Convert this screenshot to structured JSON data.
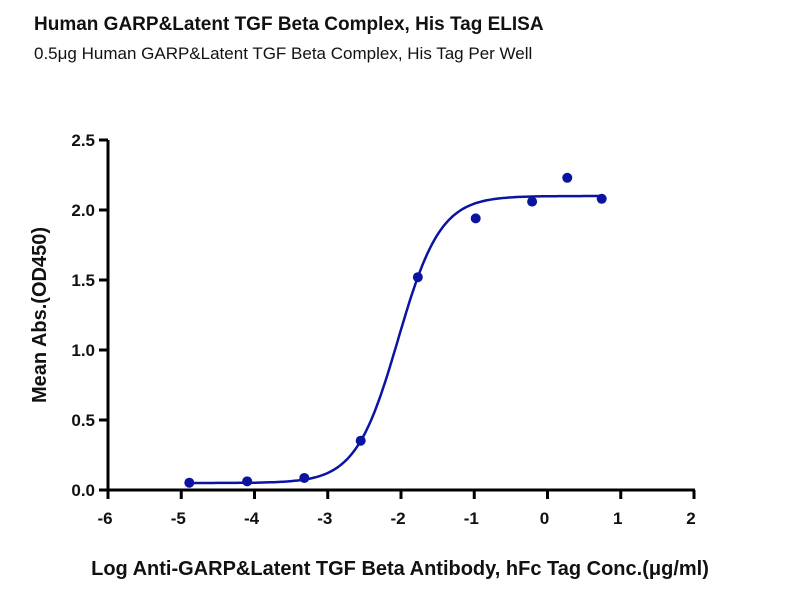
{
  "chart_data": {
    "type": "scatter",
    "title": "Human GARP&Latent TGF Beta Complex, His Tag ELISA",
    "subtitle": "0.5μg  Human GARP&Latent TGF Beta Complex, His Tag Per Well",
    "xlabel": "Log Anti-GARP&Latent TGF Beta Antibody, hFc Tag Conc.(μg/ml)",
    "ylabel": "Mean Abs.(OD450)",
    "xlim": [
      -6,
      2
    ],
    "ylim": [
      0,
      2.5
    ],
    "xticks": [
      "-6",
      "-5",
      "-4",
      "-3",
      "-2",
      "-1",
      "0",
      "1",
      "2"
    ],
    "yticks": [
      "0.0",
      "0.5",
      "1.0",
      "1.5",
      "2.0",
      "2.5"
    ],
    "grid": false,
    "color": "#0a14a0",
    "points": {
      "x": [
        -4.89,
        -4.1,
        -3.32,
        -2.55,
        -1.77,
        -0.98,
        -0.21,
        0.27,
        0.74
      ],
      "y": [
        0.052,
        0.062,
        0.086,
        0.352,
        1.52,
        1.94,
        2.06,
        2.23,
        2.08
      ]
    },
    "fit": {
      "model": "4PL",
      "bottom": 0.05,
      "top": 2.1,
      "logEC50": -2.04,
      "hill": 1.5,
      "x_range": [
        -4.89,
        0.74
      ]
    }
  }
}
